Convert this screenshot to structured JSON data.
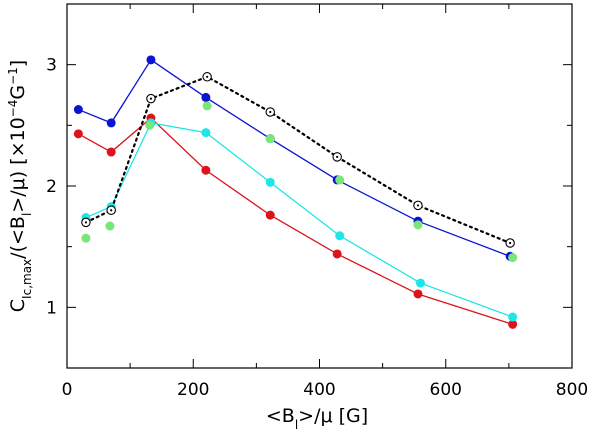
{
  "chart_data": {
    "type": "line",
    "title": "",
    "xlabel": "<B",
    "xlabel_sub": "l",
    "xlabel_suffix": ">/μ [G]",
    "ylabel": "C",
    "ylabel_sub": "Ic,max",
    "ylabel_mid": "/(<B",
    "ylabel_sub2": "l",
    "ylabel_suffix": ">/μ) [×10",
    "ylabel_exp": "−4",
    "ylabel_unit": "G",
    "ylabel_unit_exp": "−1",
    "ylabel_close": "]",
    "xlim": [
      0,
      800
    ],
    "ylim": [
      0.5,
      3.5
    ],
    "x_ticks": [
      0,
      200,
      400,
      600,
      800
    ],
    "x_tick_labels": [
      "0",
      "200",
      "400",
      "600",
      "800"
    ],
    "x_minor": [
      100,
      300,
      500,
      700
    ],
    "y_ticks": [
      1,
      2,
      3
    ],
    "y_tick_labels": [
      "1",
      "2",
      "3"
    ],
    "y_minor": [
      0.5,
      1.5,
      2.5,
      3.5
    ],
    "grid": false,
    "series": [
      {
        "name": "blue",
        "color": "#0a14d2",
        "marker": "filled-circle",
        "line": "solid",
        "x": [
          18,
          70,
          133,
          220,
          322,
          428,
          556,
          702
        ],
        "y": [
          2.63,
          2.52,
          3.04,
          2.73,
          2.39,
          2.05,
          1.71,
          1.42
        ]
      },
      {
        "name": "red",
        "color": "#dc141e",
        "marker": "filled-circle",
        "line": "solid",
        "x": [
          18,
          70,
          133,
          220,
          322,
          428,
          556,
          706
        ],
        "y": [
          2.43,
          2.28,
          2.56,
          2.13,
          1.76,
          1.44,
          1.11,
          0.86
        ]
      },
      {
        "name": "cyan",
        "color": "#1ee6e6",
        "marker": "filled-circle",
        "line": "solid",
        "x": [
          30,
          70,
          133,
          220,
          322,
          432,
          560,
          706
        ],
        "y": [
          1.74,
          1.83,
          2.52,
          2.44,
          2.03,
          1.59,
          1.2,
          0.92
        ]
      },
      {
        "name": "green",
        "color": "#78e678",
        "marker": "filled-circle",
        "line": "none",
        "x": [
          30,
          68,
          131,
          222,
          322,
          432,
          556,
          706
        ],
        "y": [
          1.57,
          1.67,
          2.5,
          2.66,
          2.39,
          2.05,
          1.68,
          1.41
        ]
      },
      {
        "name": "dotted",
        "color": "#000000",
        "marker": "open-circle-dot",
        "line": "dotted",
        "x": [
          30,
          70,
          133,
          222,
          322,
          428,
          556,
          702
        ],
        "y": [
          1.7,
          1.8,
          2.72,
          2.9,
          2.61,
          2.24,
          1.84,
          1.53
        ]
      }
    ]
  }
}
